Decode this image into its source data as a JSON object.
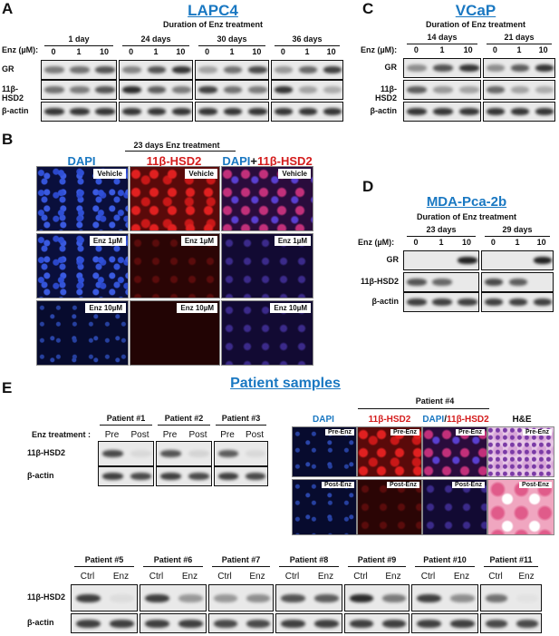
{
  "panels": {
    "A": {
      "letter": "A",
      "title": "LAPC4",
      "subtitle": "Duration of Enz treatment",
      "enz_label": "Enz (µM):",
      "durations": [
        "1 day",
        "24 days",
        "30 days",
        "36 days"
      ],
      "doses": [
        "0",
        "1",
        "10"
      ],
      "rows": [
        "GR",
        "11β-HSD2",
        "β-actin"
      ]
    },
    "B": {
      "letter": "B",
      "header": "23 days Enz treatment",
      "col_dapi": "DAPI",
      "col_hsd2": "11β-HSD2",
      "col_merge_a": "DAPI",
      "col_merge_plus": "+",
      "col_merge_b": "11β-HSD2",
      "rows": [
        "Vehicle",
        "Enz 1µM",
        "Enz 10µM"
      ]
    },
    "C": {
      "letter": "C",
      "title": "VCaP",
      "subtitle": "Duration of Enz treatment",
      "enz_label": "Enz (µM):",
      "durations": [
        "14 days",
        "21 days"
      ],
      "doses": [
        "0",
        "1",
        "10"
      ],
      "rows": [
        "GR",
        "11β-HSD2",
        "β-actin"
      ]
    },
    "D": {
      "letter": "D",
      "title": "MDA-Pca-2b",
      "subtitle": "Duration of Enz treatment",
      "enz_label": "Enz (µM):",
      "durations": [
        "23 days",
        "29 days"
      ],
      "doses": [
        "0",
        "1",
        "10"
      ],
      "rows": [
        "GR",
        "11β-HSD2",
        "β-actin"
      ]
    },
    "E": {
      "letter": "E",
      "title": "Patient samples",
      "enz_label": "Enz treatment :",
      "patients_top": [
        "Patient #1",
        "Patient #2",
        "Patient #3"
      ],
      "pre_post": [
        "Pre",
        "Post"
      ],
      "rows": [
        "11β-HSD2",
        "β-actin"
      ],
      "patient4": "Patient #4",
      "p4_cols": {
        "dapi": "DAPI",
        "hsd2": "11β-HSD2",
        "merge_a": "DAPI",
        "merge_slash": "/",
        "merge_b": "11β-HSD2",
        "he": "H&E"
      },
      "p4_rows": [
        "Pre-Enz",
        "Post-Enz"
      ],
      "patients_bottom": [
        "Patient #5",
        "Patient #6",
        "Patient #7",
        "Patient #8",
        "Patient #9",
        "Patient #10",
        "Patient #11"
      ],
      "ctrl_enz": [
        "Ctrl",
        "Enz"
      ]
    }
  },
  "colors": {
    "title_blue": "#1a78c2",
    "red_label": "#d41c1c",
    "blue_label": "#1a78c2"
  }
}
